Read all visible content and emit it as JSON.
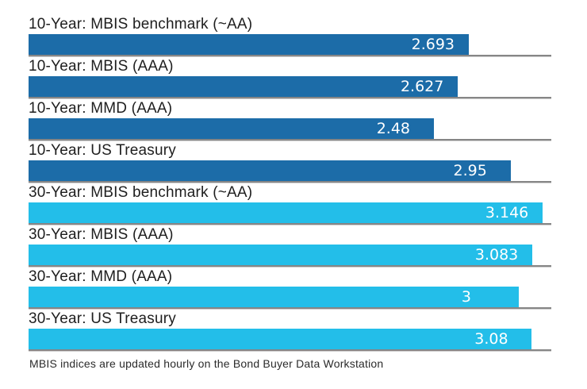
{
  "chart_data": {
    "type": "bar",
    "orientation": "horizontal",
    "title": "",
    "categories": [
      "10-Year: MBIS benchmark (~AA)",
      "10-Year: MBIS (AAA)",
      "10-Year: MMD (AAA)",
      "10-Year: US Treasury",
      "30-Year: MBIS benchmark (~AA)",
      "30-Year: MBIS (AAA)",
      "30-Year: MMD (AAA)",
      "30-Year: US Treasury"
    ],
    "values": [
      2.693,
      2.627,
      2.48,
      2.95,
      3.146,
      3.083,
      3,
      3.08
    ],
    "value_labels": [
      "2.693",
      "2.627",
      "2.48",
      "2.95",
      "3.146",
      "3.083",
      "3",
      "3.08"
    ],
    "groups": [
      "10-year",
      "10-year",
      "10-year",
      "10-year",
      "30-year",
      "30-year",
      "30-year",
      "30-year"
    ],
    "xlim": [
      0,
      3.2
    ],
    "grid": "baseline-per-bar",
    "legend_position": "none",
    "series_colors": {
      "10-year": "#1c6ca8",
      "30-year": "#23bee9"
    },
    "footnote": "MBIS indices are updated hourly on the Bond Buyer Data Workstation"
  },
  "colors": {
    "background": "#ffffff",
    "bar_10_year": "#1c6ca8",
    "bar_30_year": "#23bee9",
    "gridline_dark": "#868686",
    "gridline_light": "#d0d0d0",
    "category_text": "#1e1e1e",
    "value_text": "#ffffff",
    "footnote_text": "#2b2b2b"
  }
}
